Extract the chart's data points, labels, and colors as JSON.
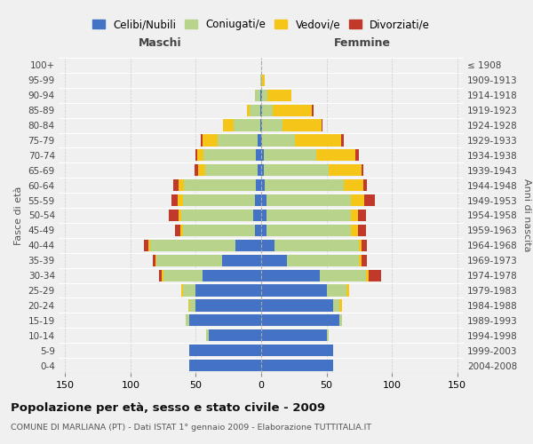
{
  "age_groups": [
    "0-4",
    "5-9",
    "10-14",
    "15-19",
    "20-24",
    "25-29",
    "30-34",
    "35-39",
    "40-44",
    "45-49",
    "50-54",
    "55-59",
    "60-64",
    "65-69",
    "70-74",
    "75-79",
    "80-84",
    "85-89",
    "90-94",
    "95-99",
    "100+"
  ],
  "birth_years": [
    "2004-2008",
    "1999-2003",
    "1994-1998",
    "1989-1993",
    "1984-1988",
    "1979-1983",
    "1974-1978",
    "1969-1973",
    "1964-1968",
    "1959-1963",
    "1954-1958",
    "1949-1953",
    "1944-1948",
    "1939-1943",
    "1934-1938",
    "1929-1933",
    "1924-1928",
    "1919-1923",
    "1914-1918",
    "1909-1913",
    "≤ 1908"
  ],
  "male": {
    "celibi": [
      55,
      55,
      40,
      55,
      50,
      50,
      45,
      30,
      20,
      5,
      6,
      5,
      4,
      3,
      4,
      3,
      1,
      1,
      1,
      0,
      0
    ],
    "coniugati": [
      0,
      0,
      2,
      3,
      5,
      10,
      30,
      50,
      65,
      55,
      55,
      55,
      55,
      40,
      40,
      30,
      20,
      8,
      4,
      1,
      0
    ],
    "vedovi": [
      0,
      0,
      0,
      0,
      1,
      1,
      1,
      1,
      1,
      2,
      2,
      4,
      4,
      5,
      5,
      12,
      8,
      2,
      0,
      0,
      0
    ],
    "divorziati": [
      0,
      0,
      0,
      0,
      0,
      0,
      2,
      2,
      4,
      4,
      8,
      5,
      4,
      3,
      1,
      1,
      0,
      0,
      0,
      0,
      0
    ]
  },
  "female": {
    "nubili": [
      55,
      55,
      50,
      60,
      55,
      50,
      45,
      20,
      10,
      4,
      4,
      4,
      3,
      2,
      2,
      1,
      1,
      1,
      1,
      0,
      0
    ],
    "coniugate": [
      0,
      0,
      2,
      2,
      5,
      15,
      35,
      55,
      65,
      65,
      65,
      65,
      60,
      50,
      40,
      25,
      15,
      8,
      4,
      1,
      0
    ],
    "vedove": [
      0,
      0,
      0,
      0,
      2,
      2,
      2,
      2,
      2,
      5,
      5,
      10,
      15,
      25,
      30,
      35,
      30,
      30,
      18,
      2,
      0
    ],
    "divorziate": [
      0,
      0,
      0,
      0,
      0,
      0,
      10,
      4,
      4,
      6,
      6,
      8,
      3,
      1,
      3,
      2,
      1,
      1,
      0,
      0,
      0
    ]
  },
  "colors": {
    "celibi": "#4472c4",
    "coniugati": "#b8d48a",
    "vedovi": "#f5c518",
    "divorziati": "#c0392b"
  },
  "xlim": 155,
  "title": "Popolazione per età, sesso e stato civile - 2009",
  "subtitle": "COMUNE DI MARLIANA (PT) - Dati ISTAT 1° gennaio 2009 - Elaborazione TUTTITALIA.IT",
  "xlabel_left": "Maschi",
  "xlabel_right": "Femmine",
  "ylabel_left": "Fasce di età",
  "ylabel_right": "Anni di nascita",
  "background_color": "#f0f0f0",
  "legend_labels": [
    "Celibi/Nubili",
    "Coniugati/e",
    "Vedovi/e",
    "Divorziati/e"
  ]
}
